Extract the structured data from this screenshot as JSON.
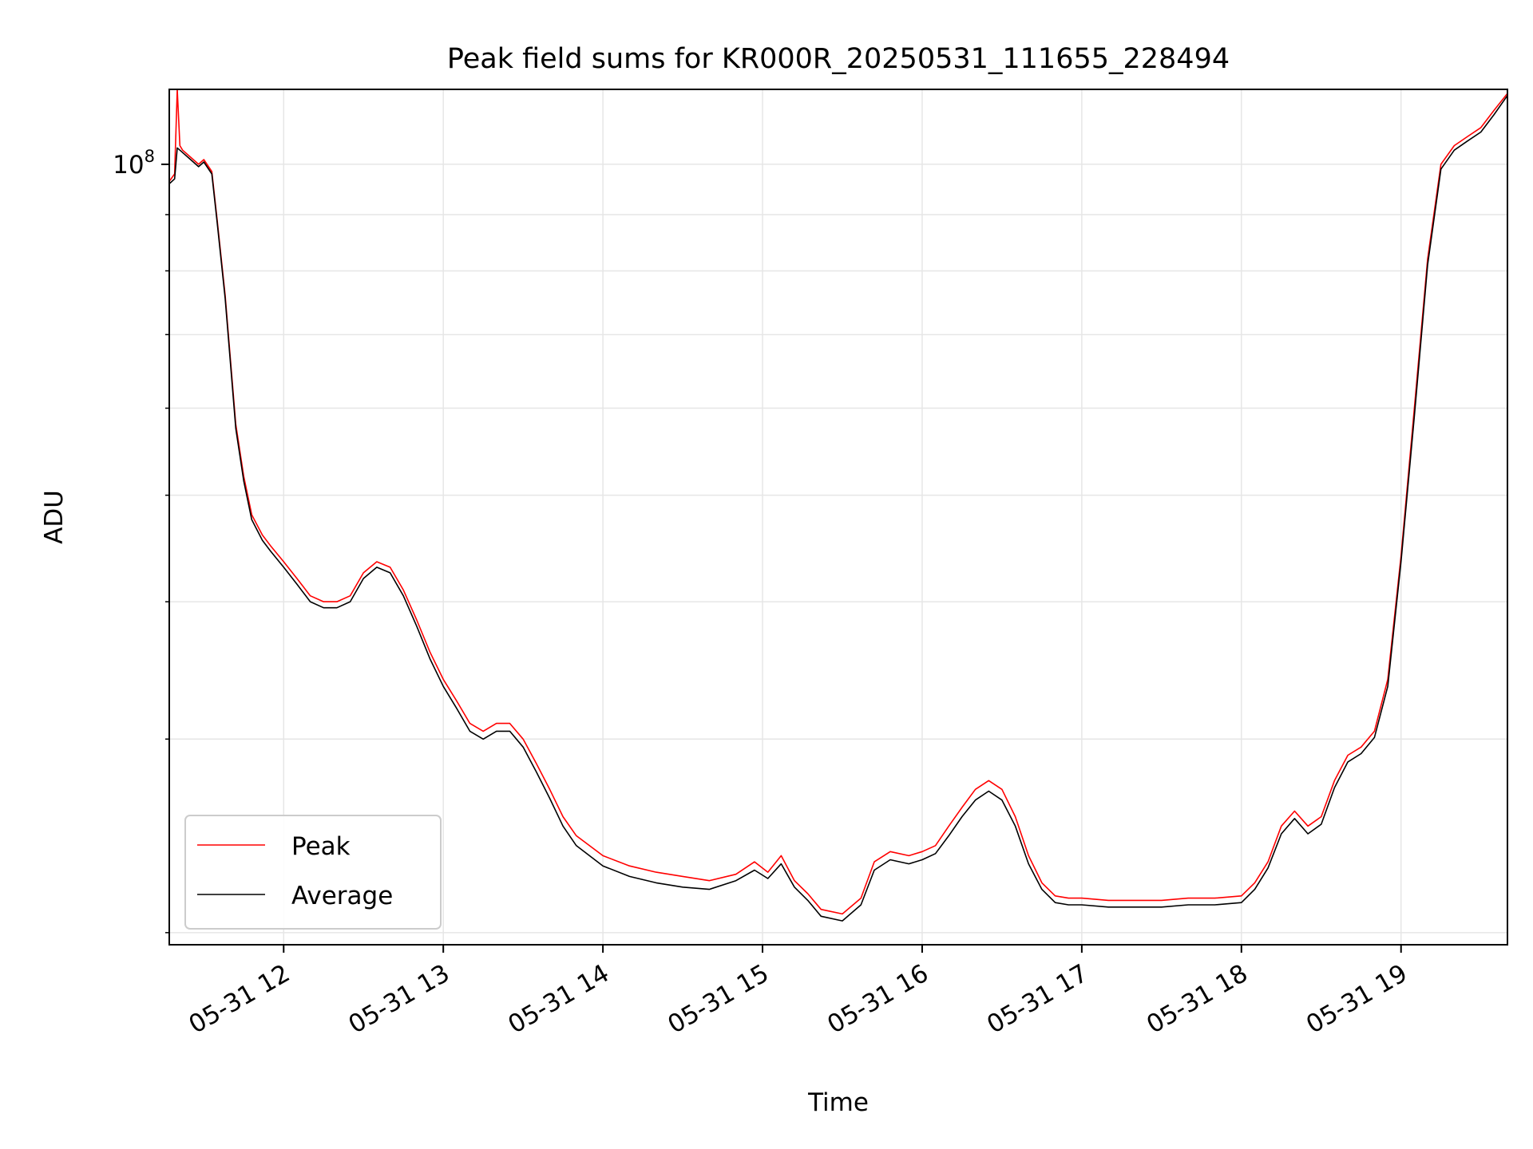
{
  "chart_data": {
    "type": "line",
    "title": "Peak field sums for KR000R_20250531_111655_228494",
    "xlabel": "Time",
    "ylabel": "ADU",
    "y_scale": "log",
    "grid": true,
    "legend_position": "lower-left",
    "xlim": [
      "2025-05-31 11:17",
      "2025-05-31 19:40"
    ],
    "ylim": [
      19500000,
      117000000
    ],
    "x_tick_labels": [
      "05-31 12",
      "05-31 13",
      "05-31 14",
      "05-31 15",
      "05-31 16",
      "05-31 17",
      "05-31 18",
      "05-31 19"
    ],
    "y_tick_labels": [
      {
        "base": "10",
        "exp": "8"
      }
    ],
    "series": [
      {
        "name": "Peak",
        "color": "#ff0000",
        "x": [
          "11:17",
          "11:19",
          "11:20",
          "11:21",
          "11:22",
          "11:25",
          "11:28",
          "11:30",
          "11:33",
          "11:35",
          "11:38",
          "11:42",
          "11:45",
          "11:48",
          "11:52",
          "11:55",
          "12:00",
          "12:05",
          "12:10",
          "12:15",
          "12:20",
          "12:25",
          "12:30",
          "12:35",
          "12:40",
          "12:45",
          "12:50",
          "12:55",
          "13:00",
          "13:05",
          "13:10",
          "13:15",
          "13:20",
          "13:25",
          "13:30",
          "13:35",
          "13:40",
          "13:45",
          "13:50",
          "14:00",
          "14:10",
          "14:20",
          "14:30",
          "14:40",
          "14:50",
          "14:57",
          "15:02",
          "15:07",
          "15:12",
          "15:17",
          "15:22",
          "15:30",
          "15:37",
          "15:42",
          "15:48",
          "15:55",
          "16:00",
          "16:05",
          "16:10",
          "16:15",
          "16:20",
          "16:25",
          "16:30",
          "16:35",
          "16:40",
          "16:45",
          "16:50",
          "16:55",
          "17:00",
          "17:10",
          "17:20",
          "17:30",
          "17:40",
          "17:50",
          "18:00",
          "18:05",
          "18:10",
          "18:15",
          "18:20",
          "18:25",
          "18:30",
          "18:35",
          "18:40",
          "18:45",
          "18:50",
          "18:55",
          "19:00",
          "19:05",
          "19:10",
          "19:15",
          "19:20",
          "19:25",
          "19:30",
          "19:35",
          "19:40"
        ],
        "y": [
          96500000,
          98000000,
          117000000,
          104000000,
          103000000,
          101500000,
          100000000,
          101000000,
          98500000,
          89000000,
          76000000,
          58000000,
          52000000,
          48000000,
          46000000,
          45000000,
          43500000,
          42000000,
          40500000,
          40000000,
          40000000,
          40500000,
          42500000,
          43500000,
          43000000,
          41000000,
          38500000,
          36000000,
          34000000,
          32500000,
          31000000,
          30500000,
          31000000,
          31000000,
          30000000,
          28500000,
          27000000,
          25500000,
          24500000,
          23500000,
          23000000,
          22700000,
          22500000,
          22300000,
          22600000,
          23200000,
          22700000,
          23500000,
          22300000,
          21700000,
          21000000,
          20800000,
          21500000,
          23200000,
          23700000,
          23500000,
          23700000,
          24000000,
          25000000,
          26000000,
          27000000,
          27500000,
          27000000,
          25500000,
          23500000,
          22200000,
          21600000,
          21500000,
          21500000,
          21400000,
          21400000,
          21400000,
          21500000,
          21500000,
          21600000,
          22200000,
          23200000,
          25000000,
          25800000,
          25000000,
          25500000,
          27500000,
          29000000,
          29500000,
          30500000,
          34000000,
          44000000,
          60000000,
          82000000,
          100000000,
          104000000,
          106000000,
          108000000,
          112000000,
          116000000
        ]
      },
      {
        "name": "Average",
        "color": "#000000",
        "x": [
          "11:17",
          "11:19",
          "11:20",
          "11:21",
          "11:22",
          "11:25",
          "11:28",
          "11:30",
          "11:33",
          "11:35",
          "11:38",
          "11:42",
          "11:45",
          "11:48",
          "11:52",
          "11:55",
          "12:00",
          "12:05",
          "12:10",
          "12:15",
          "12:20",
          "12:25",
          "12:30",
          "12:35",
          "12:40",
          "12:45",
          "12:50",
          "12:55",
          "13:00",
          "13:05",
          "13:10",
          "13:15",
          "13:20",
          "13:25",
          "13:30",
          "13:35",
          "13:40",
          "13:45",
          "13:50",
          "14:00",
          "14:10",
          "14:20",
          "14:30",
          "14:40",
          "14:50",
          "14:57",
          "15:02",
          "15:07",
          "15:12",
          "15:17",
          "15:22",
          "15:30",
          "15:37",
          "15:42",
          "15:48",
          "15:55",
          "16:00",
          "16:05",
          "16:10",
          "16:15",
          "16:20",
          "16:25",
          "16:30",
          "16:35",
          "16:40",
          "16:45",
          "16:50",
          "16:55",
          "17:00",
          "17:10",
          "17:20",
          "17:30",
          "17:40",
          "17:50",
          "18:00",
          "18:05",
          "18:10",
          "18:15",
          "18:20",
          "18:25",
          "18:30",
          "18:35",
          "18:40",
          "18:45",
          "18:50",
          "18:55",
          "19:00",
          "19:05",
          "19:10",
          "19:15",
          "19:20",
          "19:25",
          "19:30",
          "19:35",
          "19:40"
        ],
        "y": [
          96000000,
          97000000,
          103500000,
          103000000,
          102500000,
          101000000,
          99500000,
          100500000,
          98000000,
          88500000,
          75500000,
          57500000,
          51500000,
          47500000,
          45500000,
          44500000,
          43000000,
          41500000,
          40000000,
          39500000,
          39500000,
          40000000,
          42000000,
          43000000,
          42500000,
          40500000,
          38000000,
          35500000,
          33500000,
          32000000,
          30500000,
          30000000,
          30500000,
          30500000,
          29500000,
          28000000,
          26500000,
          25000000,
          24000000,
          23000000,
          22500000,
          22200000,
          22000000,
          21900000,
          22300000,
          22800000,
          22400000,
          23100000,
          22000000,
          21400000,
          20700000,
          20500000,
          21200000,
          22800000,
          23300000,
          23100000,
          23300000,
          23600000,
          24500000,
          25500000,
          26400000,
          26900000,
          26400000,
          25000000,
          23100000,
          21900000,
          21300000,
          21200000,
          21200000,
          21100000,
          21100000,
          21100000,
          21200000,
          21200000,
          21300000,
          21900000,
          22900000,
          24600000,
          25400000,
          24600000,
          25100000,
          27100000,
          28600000,
          29100000,
          30100000,
          33500000,
          43500000,
          59000000,
          81000000,
          99000000,
          103000000,
          105000000,
          107000000,
          111000000,
          115500000
        ]
      }
    ]
  }
}
